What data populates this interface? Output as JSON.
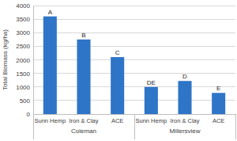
{
  "chart_data": {
    "type": "bar",
    "ylabel": "Total Biomass (kg/ha)",
    "categories": [
      "Sunn Hemp",
      "Iron & Clay",
      "ACE",
      "Sunn Hemp",
      "Iron & Clay",
      "ACE"
    ],
    "group_labels": [
      "Coleman",
      "Millersview"
    ],
    "values": [
      3600,
      2750,
      2100,
      1000,
      1220,
      780
    ],
    "annotations": [
      "A",
      "B",
      "C",
      "DE",
      "D",
      "E"
    ],
    "color": "#2e75c8",
    "ylim": [
      0,
      4000
    ],
    "yticks": [
      0,
      500,
      1000,
      1500,
      2000,
      2500,
      3000,
      3500,
      4000
    ],
    "grid": true
  }
}
